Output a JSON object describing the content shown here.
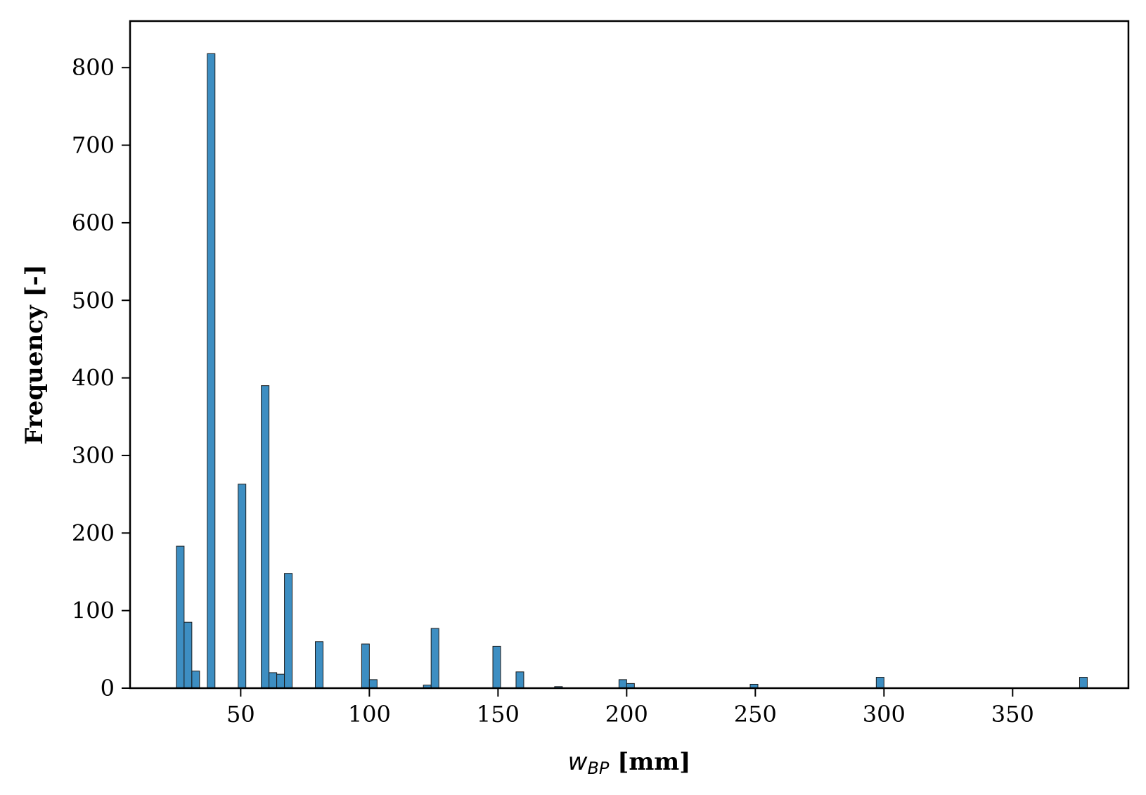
{
  "chart_data": {
    "type": "bar",
    "subtype": "histogram",
    "xlabel_symbol": "w",
    "xlabel_subscript": "BP",
    "xlabel_unit": " [mm]",
    "ylabel": "Frequency [-]",
    "xlim": [
      7,
      395
    ],
    "ylim": [
      0,
      860
    ],
    "xticks": [
      50,
      100,
      150,
      200,
      250,
      300,
      350
    ],
    "yticks": [
      0,
      100,
      200,
      300,
      400,
      500,
      600,
      700,
      800
    ],
    "bin_width": 3.0,
    "grid": false,
    "bar_color": "#3d8ec2",
    "bar_edge_color": "#1a1a1a",
    "bins": [
      {
        "x": 25.0,
        "count": 183
      },
      {
        "x": 28.0,
        "count": 85
      },
      {
        "x": 31.0,
        "count": 22
      },
      {
        "x": 37.0,
        "count": 818
      },
      {
        "x": 49.0,
        "count": 263
      },
      {
        "x": 58.0,
        "count": 390
      },
      {
        "x": 61.0,
        "count": 20
      },
      {
        "x": 64.0,
        "count": 18
      },
      {
        "x": 67.0,
        "count": 148
      },
      {
        "x": 79.0,
        "count": 60
      },
      {
        "x": 97.0,
        "count": 57
      },
      {
        "x": 100.0,
        "count": 11
      },
      {
        "x": 121.0,
        "count": 4
      },
      {
        "x": 124.0,
        "count": 77
      },
      {
        "x": 148.0,
        "count": 54
      },
      {
        "x": 157.0,
        "count": 21
      },
      {
        "x": 172.0,
        "count": 2
      },
      {
        "x": 197.0,
        "count": 11
      },
      {
        "x": 200.0,
        "count": 6
      },
      {
        "x": 248.0,
        "count": 5
      },
      {
        "x": 297.0,
        "count": 14
      },
      {
        "x": 376.0,
        "count": 14
      }
    ]
  }
}
